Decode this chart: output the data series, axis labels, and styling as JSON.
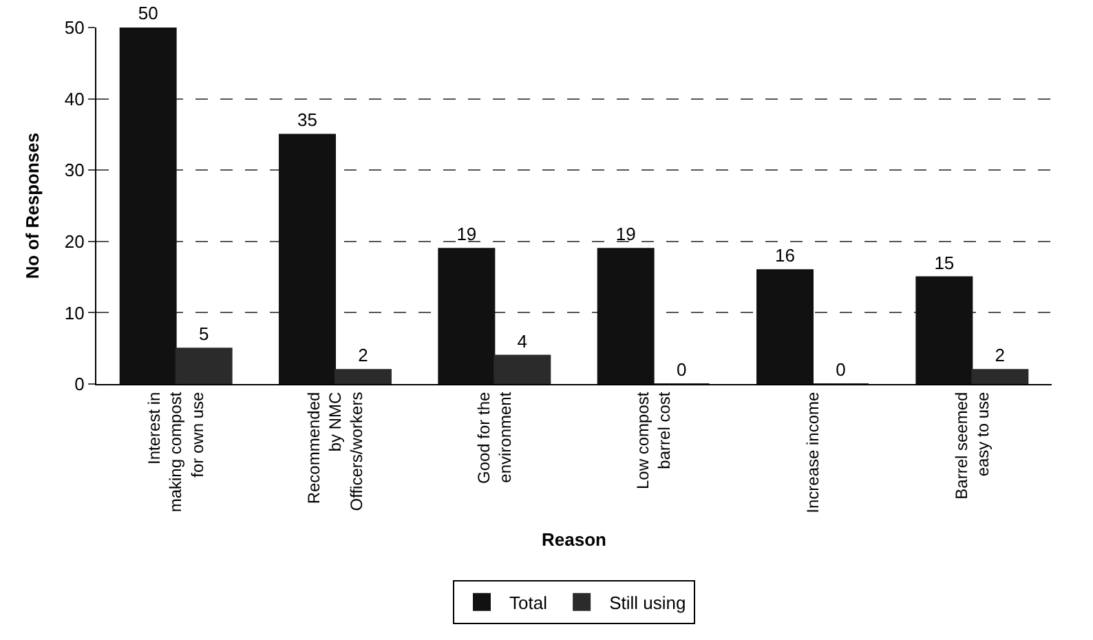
{
  "chart_data": {
    "type": "bar",
    "xlabel": "Reason",
    "ylabel": "No of Responses",
    "categories": [
      "Interest in\nmaking compost\nfor own use",
      "Recommended\nby NMC\nOfficers/workers",
      "Good for the\nenvironment",
      "Low compost\nbarrel cost",
      "Increase income",
      "Barrel seemed\neasy to use"
    ],
    "series": [
      {
        "name": "Total",
        "color": "#111111",
        "values": [
          50,
          35,
          19,
          19,
          16,
          15
        ]
      },
      {
        "name": "Still using",
        "color": "#2b2b2b",
        "values": [
          5,
          2,
          4,
          0,
          0,
          2
        ]
      }
    ],
    "ylim": [
      0,
      50
    ],
    "yticks": [
      0,
      10,
      20,
      30,
      40,
      50
    ],
    "grid": "y",
    "legend": "bottom",
    "data_labels": true
  }
}
